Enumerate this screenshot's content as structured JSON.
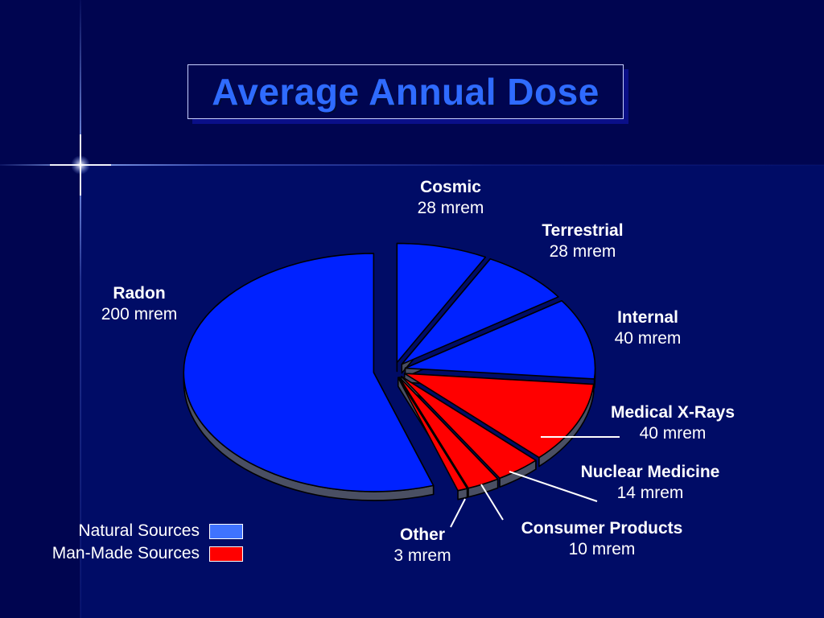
{
  "chart_data": {
    "type": "pie",
    "title": "Average Annual Dose",
    "unit": "mrem",
    "slices": [
      {
        "label": "Cosmic",
        "value": 28,
        "value_text": "28 mrem",
        "group": "natural"
      },
      {
        "label": "Terrestrial",
        "value": 28,
        "value_text": "28 mrem",
        "group": "natural"
      },
      {
        "label": "Internal",
        "value": 40,
        "value_text": "40 mrem",
        "group": "natural"
      },
      {
        "label": "Medical X-Rays",
        "value": 40,
        "value_text": "40 mrem",
        "group": "man-made"
      },
      {
        "label": "Nuclear Medicine",
        "value": 14,
        "value_text": "14 mrem",
        "group": "man-made"
      },
      {
        "label": "Consumer Products",
        "value": 10,
        "value_text": "10 mrem",
        "group": "man-made"
      },
      {
        "label": "Other",
        "value": 3,
        "value_text": "3 mrem",
        "group": "man-made"
      },
      {
        "label": "Radon",
        "value": 200,
        "value_text": "200 mrem",
        "group": "natural"
      }
    ],
    "legend": {
      "placement": "bottom-left",
      "items": [
        {
          "label": "Natural Sources",
          "color": "#3f73ff"
        },
        {
          "label": "Man-Made Sources",
          "color": "#ff0000"
        }
      ]
    },
    "colors": {
      "natural": "#0022ff",
      "man-made": "#ff0000",
      "edge": "#4a4f63"
    }
  }
}
